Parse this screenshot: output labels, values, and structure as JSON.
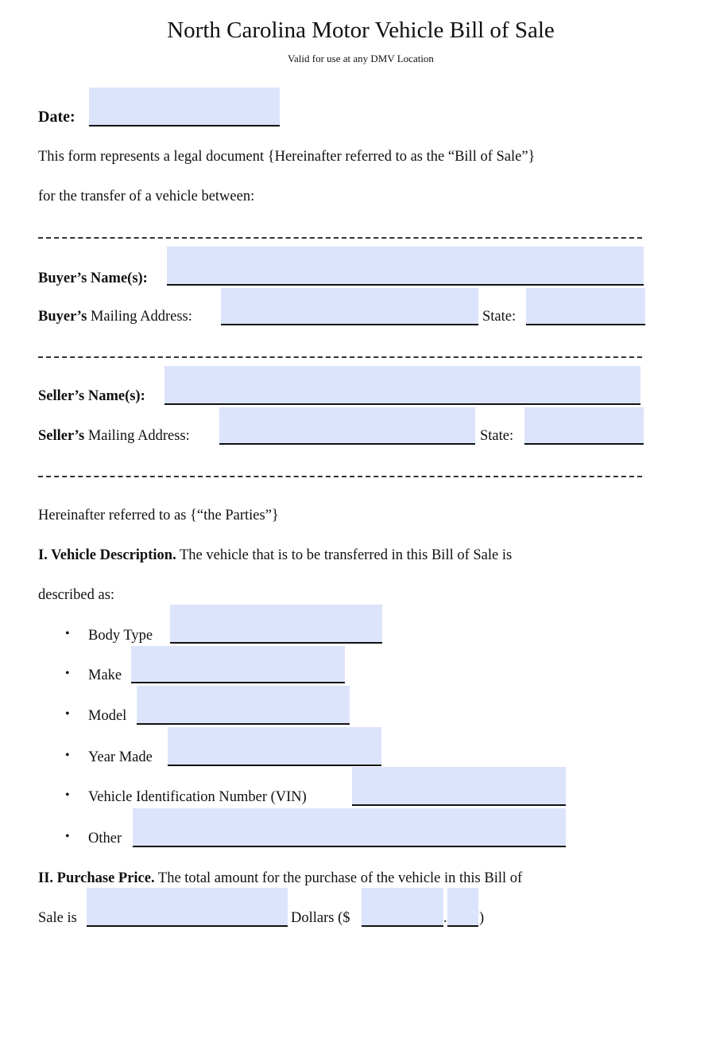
{
  "title": "North Carolina Motor Vehicle Bill of Sale",
  "subtitle": "Valid for use at any DMV Location",
  "date_label": "Date:",
  "intro_line1": "This form represents a legal document {Hereinafter referred to as the “Bill of Sale”}",
  "intro_line2": "for the transfer of a vehicle between:",
  "buyer": {
    "name_label": "Buyer’s Name(s):",
    "address_label_bold": "Buyer’s",
    "address_label": " Mailing Address:",
    "state_label": "State:",
    "name_value": "",
    "address_value": "",
    "state_value": ""
  },
  "seller": {
    "name_label": "Seller’s Name(s):",
    "address_label_bold": "Seller’s",
    "address_label": " Mailing Address:",
    "state_label": "State:",
    "name_value": "",
    "address_value": "",
    "state_value": ""
  },
  "parties_text": "Hereinafter referred to as {“the Parties”}",
  "vehicle": {
    "heading": "I. Vehicle Description.",
    "text": " The vehicle that is to be transferred in this Bill of Sale is",
    "text2": "described as:",
    "items": [
      {
        "label": "Body Type",
        "value": ""
      },
      {
        "label": "Make",
        "value": ""
      },
      {
        "label": "Model",
        "value": ""
      },
      {
        "label": "Year Made",
        "value": ""
      },
      {
        "label": "Vehicle Identification Number (VIN)",
        "value": ""
      },
      {
        "label": "Other",
        "value": ""
      }
    ]
  },
  "price": {
    "heading": "II. Purchase Price.",
    "text": "  The total amount for the purchase of the vehicle in this Bill of",
    "sale_is": "Sale is",
    "dollars": "Dollars ($",
    "dot": ".",
    "close": ")",
    "words_value": "",
    "dollars_value": "",
    "cents_value": ""
  },
  "field_color": "#dce4fb"
}
